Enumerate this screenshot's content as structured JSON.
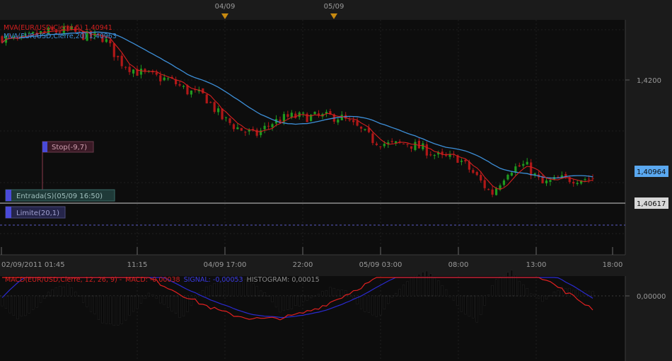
{
  "top_dates": [
    "04/09",
    "05/09"
  ],
  "price_panel": {
    "legend": [
      {
        "text": "MVA(EUR/USD,Cierre,5) 1,40941",
        "color": "#d42020"
      },
      {
        "text": "MVA(EUR/USD,Cierre,20) 1,40963",
        "color": "#3d8fd8"
      }
    ],
    "y_ticks": [
      "1,4200"
    ],
    "current_price": "1,40964",
    "entry_price": "1,40617",
    "orders": {
      "stop": "Stop(-9,7)",
      "entry": "Entrada(S)(05/09 16:50)",
      "limit": "Limite(20,1)"
    }
  },
  "x_ticks": [
    "02/09/2011 01:45",
    "11:15",
    "04/09 17:00",
    "22:00",
    "05/09 03:00",
    "08:00",
    "13:00",
    "18:00"
  ],
  "macd_panel": {
    "title": "MACD(EUR/USD,Cierre, 12, 26, 9) -",
    "macd_text": "MACD: -0,00038",
    "signal_text": "SIGNAL: -0,00053",
    "histogram_text": "HISTOGRAM: 0,00015",
    "zero_label": "0,00000"
  },
  "colors": {
    "bull": "#1f9a1f",
    "bear": "#b01818",
    "ma_fast": "#d42020",
    "ma_slow": "#3d8fd8",
    "macd": "#e02020",
    "signal": "#2a2ad0",
    "histogram": "#111111"
  },
  "chart_data": [
    {
      "type": "candlestick",
      "title": "EUR/USD",
      "ylabel": "",
      "x": [
        "02/09/2011 01:45",
        "11:15",
        "04/09 17:00",
        "22:00",
        "05/09 03:00",
        "08:00",
        "13:00",
        "18:00"
      ],
      "y_ticks": [
        1.42
      ],
      "ylim": [
        1.4018,
        1.4258
      ],
      "close_path": [
        1.424,
        1.4236,
        1.4243,
        1.4246,
        1.4247,
        1.4241,
        1.424,
        1.4215,
        1.4205,
        1.42,
        1.4196,
        1.4185,
        1.418,
        1.4158,
        1.4147,
        1.414,
        1.4153,
        1.4159,
        1.4159,
        1.4159,
        1.4159,
        1.4148,
        1.4135,
        1.413,
        1.4132,
        1.4126,
        1.4117,
        1.4117,
        1.41,
        1.408,
        1.4105,
        1.411,
        1.409,
        1.4095,
        1.4096,
        1.4096
      ],
      "series": [
        {
          "name": "MVA(EUR/USD,Cierre,5) 1,40941",
          "last": 1.40941
        },
        {
          "name": "MVA(EUR/USD,Cierre,20) 1,40963",
          "last": 1.40963
        }
      ],
      "price_labels": [
        1.40964,
        1.40617
      ],
      "orders": [
        {
          "label": "Stop(-9,7)"
        },
        {
          "label": "Entrada(S)(05/09 16:50)",
          "price": 1.40617
        },
        {
          "label": "Limite(20,1)"
        }
      ]
    },
    {
      "type": "bar",
      "title": "MACD(EUR/USD,Cierre, 12, 26, 9)",
      "series": [
        {
          "name": "MACD",
          "last": -0.00038
        },
        {
          "name": "SIGNAL",
          "last": -0.00053
        },
        {
          "name": "HISTOGRAM",
          "last": 0.00015
        }
      ],
      "y_ticks": [
        0.0
      ],
      "histogram_path": [
        -0.0003,
        -0.0007,
        -0.0004,
        0.0002,
        0.00035,
        -0.0002,
        -0.0008,
        -0.00095,
        -0.0005,
        0.0001,
        -0.00035,
        -0.0007,
        0.0001,
        0.0004,
        0.00055,
        0.0005,
        0.0001,
        -0.0005,
        -0.0003,
        -5e-05,
        0.00025,
        0.0002,
        -0.00045,
        -0.00065,
        0.0001,
        0.0006,
        0.00075,
        0.0002,
        -0.0005,
        -0.0008,
        0.00045,
        0.0008,
        0.0002,
        -0.0002,
        0.00025,
        0.0002,
        0.00015
      ]
    }
  ]
}
